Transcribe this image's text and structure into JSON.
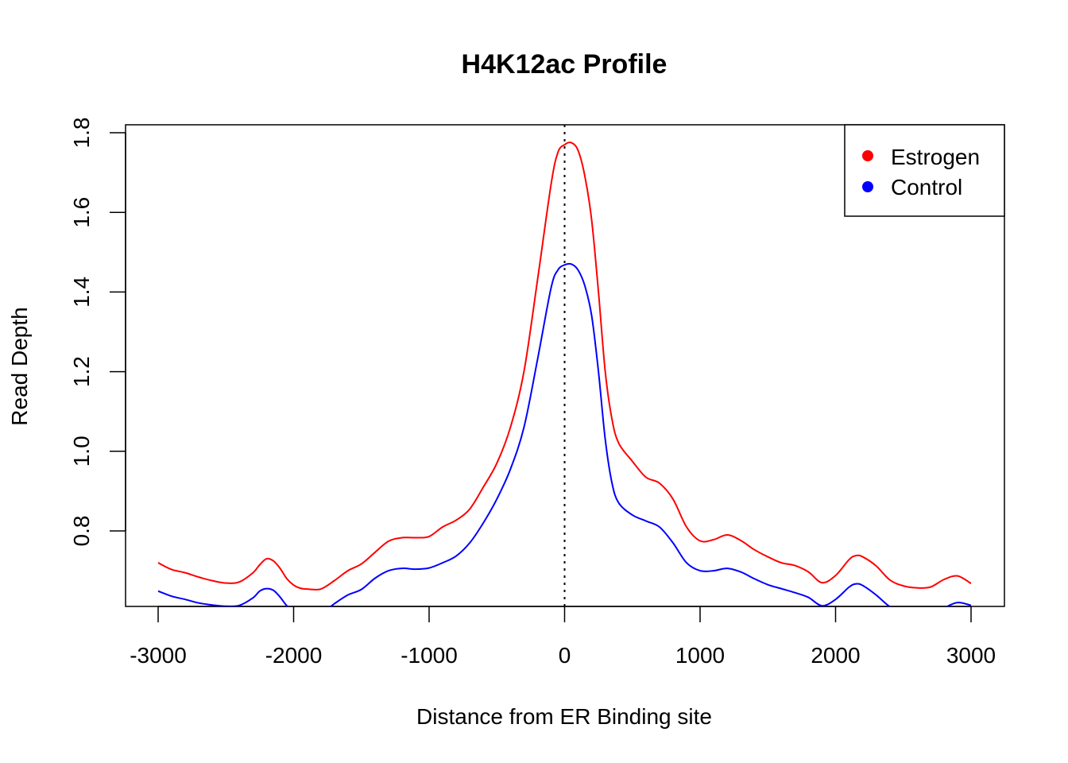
{
  "chart_data": {
    "type": "line",
    "title": "H4K12ac Profile",
    "xlabel": "Distance from ER Binding site",
    "ylabel": "Read Depth",
    "xlim": [
      -3000,
      3000
    ],
    "ylim": [
      0.6,
      1.8
    ],
    "xticks": [
      -3000,
      -2000,
      -1000,
      0,
      1000,
      2000,
      3000
    ],
    "yticks": [
      0.8,
      1.0,
      1.2,
      1.4,
      1.6,
      1.8
    ],
    "xtick_labels": [
      "-3000",
      "-2000",
      "-1000",
      "0",
      "1000",
      "2000",
      "3000"
    ],
    "ytick_labels": [
      "0.8",
      "1.0",
      "1.2",
      "1.4",
      "1.6",
      "1.8"
    ],
    "grid": false,
    "legend_position": "top-right",
    "reference_line": {
      "x": 0,
      "style": "dotted"
    },
    "series": [
      {
        "name": "Estrogen",
        "color": "#ff0000",
        "points": [
          [
            -3000,
            0.72
          ],
          [
            -2900,
            0.703
          ],
          [
            -2800,
            0.695
          ],
          [
            -2700,
            0.684
          ],
          [
            -2600,
            0.675
          ],
          [
            -2500,
            0.669
          ],
          [
            -2400,
            0.672
          ],
          [
            -2300,
            0.695
          ],
          [
            -2250,
            0.715
          ],
          [
            -2200,
            0.73
          ],
          [
            -2150,
            0.725
          ],
          [
            -2100,
            0.706
          ],
          [
            -2050,
            0.68
          ],
          [
            -2000,
            0.664
          ],
          [
            -1950,
            0.656
          ],
          [
            -1900,
            0.654
          ],
          [
            -1800,
            0.654
          ],
          [
            -1700,
            0.675
          ],
          [
            -1600,
            0.7
          ],
          [
            -1500,
            0.717
          ],
          [
            -1400,
            0.746
          ],
          [
            -1300,
            0.774
          ],
          [
            -1200,
            0.783
          ],
          [
            -1100,
            0.783
          ],
          [
            -1000,
            0.786
          ],
          [
            -900,
            0.81
          ],
          [
            -800,
            0.827
          ],
          [
            -700,
            0.855
          ],
          [
            -600,
            0.91
          ],
          [
            -500,
            0.97
          ],
          [
            -400,
            1.06
          ],
          [
            -300,
            1.2
          ],
          [
            -200,
            1.43
          ],
          [
            -100,
            1.67
          ],
          [
            -50,
            1.75
          ],
          [
            0,
            1.77
          ],
          [
            50,
            1.775
          ],
          [
            100,
            1.755
          ],
          [
            150,
            1.69
          ],
          [
            200,
            1.58
          ],
          [
            250,
            1.4
          ],
          [
            300,
            1.2
          ],
          [
            350,
            1.08
          ],
          [
            400,
            1.02
          ],
          [
            500,
            0.975
          ],
          [
            600,
            0.935
          ],
          [
            700,
            0.92
          ],
          [
            800,
            0.88
          ],
          [
            900,
            0.81
          ],
          [
            1000,
            0.775
          ],
          [
            1100,
            0.778
          ],
          [
            1200,
            0.79
          ],
          [
            1300,
            0.776
          ],
          [
            1400,
            0.753
          ],
          [
            1500,
            0.735
          ],
          [
            1600,
            0.72
          ],
          [
            1700,
            0.713
          ],
          [
            1800,
            0.697
          ],
          [
            1900,
            0.67
          ],
          [
            2000,
            0.688
          ],
          [
            2100,
            0.728
          ],
          [
            2150,
            0.738
          ],
          [
            2200,
            0.735
          ],
          [
            2300,
            0.712
          ],
          [
            2400,
            0.677
          ],
          [
            2500,
            0.662
          ],
          [
            2600,
            0.657
          ],
          [
            2700,
            0.659
          ],
          [
            2800,
            0.678
          ],
          [
            2900,
            0.687
          ],
          [
            3000,
            0.668
          ]
        ]
      },
      {
        "name": "Control",
        "color": "#0000ff",
        "points": [
          [
            -3000,
            0.649
          ],
          [
            -2900,
            0.636
          ],
          [
            -2800,
            0.628
          ],
          [
            -2700,
            0.619
          ],
          [
            -2600,
            0.614
          ],
          [
            -2500,
            0.611
          ],
          [
            -2400,
            0.613
          ],
          [
            -2300,
            0.632
          ],
          [
            -2250,
            0.649
          ],
          [
            -2200,
            0.655
          ],
          [
            -2150,
            0.651
          ],
          [
            -2100,
            0.634
          ],
          [
            -2050,
            0.612
          ],
          [
            -2000,
            0.601
          ],
          [
            -1900,
            0.582
          ],
          [
            -1800,
            0.592
          ],
          [
            -1700,
            0.617
          ],
          [
            -1600,
            0.639
          ],
          [
            -1500,
            0.653
          ],
          [
            -1400,
            0.681
          ],
          [
            -1300,
            0.7
          ],
          [
            -1200,
            0.706
          ],
          [
            -1100,
            0.704
          ],
          [
            -1000,
            0.707
          ],
          [
            -900,
            0.72
          ],
          [
            -800,
            0.737
          ],
          [
            -700,
            0.77
          ],
          [
            -600,
            0.82
          ],
          [
            -500,
            0.88
          ],
          [
            -400,
            0.955
          ],
          [
            -300,
            1.06
          ],
          [
            -200,
            1.23
          ],
          [
            -100,
            1.41
          ],
          [
            -50,
            1.455
          ],
          [
            0,
            1.468
          ],
          [
            50,
            1.47
          ],
          [
            100,
            1.455
          ],
          [
            150,
            1.415
          ],
          [
            200,
            1.34
          ],
          [
            250,
            1.2
          ],
          [
            300,
            1.03
          ],
          [
            350,
            0.92
          ],
          [
            400,
            0.87
          ],
          [
            500,
            0.84
          ],
          [
            600,
            0.825
          ],
          [
            700,
            0.81
          ],
          [
            800,
            0.77
          ],
          [
            900,
            0.72
          ],
          [
            1000,
            0.7
          ],
          [
            1100,
            0.7
          ],
          [
            1200,
            0.706
          ],
          [
            1300,
            0.697
          ],
          [
            1400,
            0.68
          ],
          [
            1500,
            0.665
          ],
          [
            1600,
            0.655
          ],
          [
            1700,
            0.645
          ],
          [
            1800,
            0.633
          ],
          [
            1900,
            0.612
          ],
          [
            2000,
            0.628
          ],
          [
            2100,
            0.659
          ],
          [
            2150,
            0.667
          ],
          [
            2200,
            0.663
          ],
          [
            2300,
            0.639
          ],
          [
            2400,
            0.61
          ],
          [
            2500,
            0.597
          ],
          [
            2600,
            0.586
          ],
          [
            2700,
            0.586
          ],
          [
            2800,
            0.606
          ],
          [
            2900,
            0.62
          ],
          [
            3000,
            0.613
          ]
        ]
      }
    ]
  }
}
